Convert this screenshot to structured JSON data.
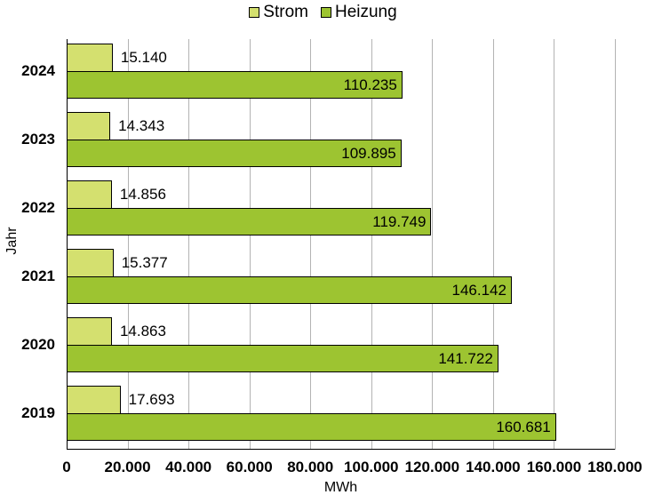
{
  "chart_data": {
    "type": "bar",
    "orientation": "horizontal",
    "title": "",
    "xlabel": "MWh",
    "ylabel": "Jahr",
    "categories": [
      "2024",
      "2023",
      "2022",
      "2021",
      "2020",
      "2019"
    ],
    "series": [
      {
        "name": "Strom",
        "color": "#d4e06f",
        "values": [
          15140,
          14343,
          14856,
          15377,
          14863,
          17693
        ],
        "labels": [
          "15.140",
          "14.343",
          "14.856",
          "15.377",
          "14.863",
          "17.693"
        ]
      },
      {
        "name": "Heizung",
        "color": "#9dc431",
        "values": [
          110235,
          109895,
          119749,
          146142,
          141722,
          160681
        ],
        "labels": [
          "110.235",
          "109.895",
          "119.749",
          "146.142",
          "141.722",
          "160.681"
        ]
      }
    ],
    "xlim": [
      0,
      180000
    ],
    "xticks": [
      0,
      20000,
      40000,
      60000,
      80000,
      100000,
      120000,
      140000,
      160000,
      180000
    ],
    "xtick_labels": [
      "0",
      "20.000",
      "40.000",
      "60.000",
      "80.000",
      "100.000",
      "120.000",
      "140.000",
      "160.000",
      "180.000"
    ],
    "grid": "vertical",
    "legend_position": "top"
  },
  "legend": {
    "strom": "Strom",
    "heizung": "Heizung"
  },
  "axes": {
    "x_title": "MWh",
    "y_title": "Jahr"
  }
}
